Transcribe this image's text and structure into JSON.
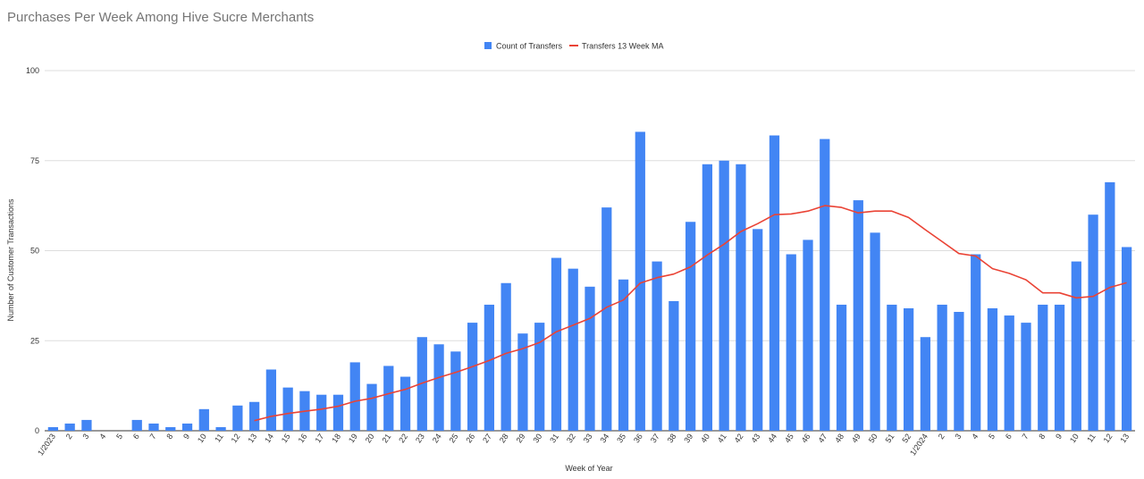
{
  "chart_data": {
    "type": "bar",
    "title": "Purchases Per Week Among Hive Sucre Merchants",
    "xlabel": "Week of Year",
    "ylabel": "Number of Customer Transactions",
    "ylim": [
      0,
      100
    ],
    "yticks": [
      0,
      25,
      50,
      75,
      100
    ],
    "grid": true,
    "legend_position": "top-center",
    "categories": [
      "1/2023",
      "2",
      "3",
      "4",
      "5",
      "6",
      "7",
      "8",
      "9",
      "10",
      "11",
      "12",
      "13",
      "14",
      "15",
      "16",
      "17",
      "18",
      "19",
      "20",
      "21",
      "22",
      "23",
      "24",
      "25",
      "26",
      "27",
      "28",
      "29",
      "30",
      "31",
      "32",
      "33",
      "34",
      "35",
      "36",
      "37",
      "38",
      "39",
      "40",
      "41",
      "42",
      "43",
      "44",
      "45",
      "46",
      "47",
      "48",
      "49",
      "50",
      "51",
      "52",
      "1/2024",
      "2",
      "3",
      "4",
      "5",
      "6",
      "7",
      "8",
      "9",
      "10",
      "11",
      "12",
      "13"
    ],
    "series": [
      {
        "name": "Count of Transfers",
        "type": "bar",
        "color": "#4285f4",
        "values": [
          1,
          2,
          3,
          0,
          0,
          3,
          2,
          1,
          2,
          6,
          1,
          7,
          8,
          17,
          12,
          11,
          10,
          10,
          19,
          13,
          18,
          15,
          26,
          24,
          22,
          30,
          35,
          41,
          27,
          30,
          48,
          45,
          40,
          62,
          42,
          83,
          47,
          36,
          58,
          74,
          75,
          74,
          56,
          82,
          49,
          53,
          81,
          35,
          64,
          55,
          35,
          34,
          26,
          35,
          33,
          49,
          34,
          32,
          30,
          35,
          35,
          47,
          60,
          69,
          51
        ]
      },
      {
        "name": "Transfers 13 Week MA",
        "type": "line",
        "color": "#ea4335",
        "values": [
          null,
          null,
          null,
          null,
          null,
          null,
          null,
          null,
          null,
          null,
          null,
          null,
          2.8,
          4.0,
          4.8,
          5.4,
          6.0,
          6.8,
          8.2,
          9.0,
          10.3,
          11.5,
          13.2,
          14.8,
          16.2,
          17.8,
          19.5,
          21.5,
          22.8,
          24.5,
          27.5,
          29.3,
          31.2,
          34.3,
          36.3,
          41.0,
          42.5,
          43.5,
          45.5,
          48.8,
          51.8,
          55.3,
          57.5,
          60.0,
          60.2,
          61.0,
          62.5,
          62.0,
          60.5,
          61.0,
          61.0,
          59.2,
          55.8,
          52.5,
          49.2,
          48.5,
          45.0,
          43.7,
          41.9,
          38.3,
          38.3,
          36.9,
          37.3,
          39.8,
          41.1
        ]
      }
    ]
  }
}
